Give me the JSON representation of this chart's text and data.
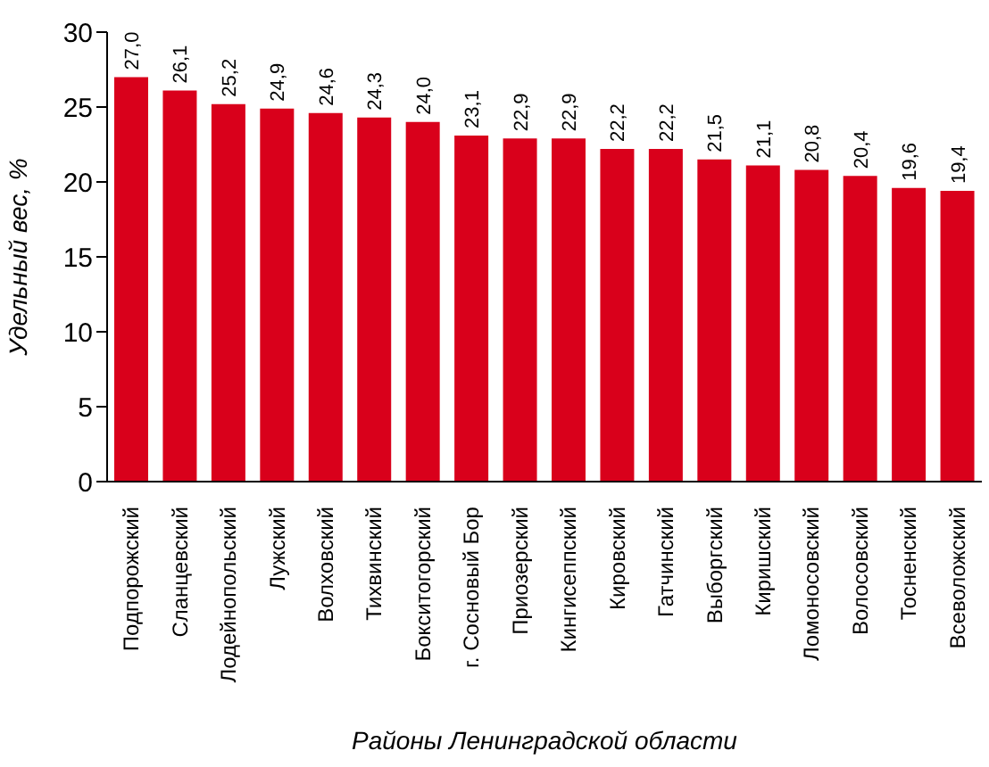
{
  "chart_data": {
    "type": "bar",
    "xlabel": "Районы Ленинградской области",
    "ylabel": "Удельный вес, %",
    "categories": [
      "Подпорожский",
      "Сланцевский",
      "Лодейнопольский",
      "Лужский",
      "Волховский",
      "Тихвинский",
      "Бокситогорский",
      "г. Сосновый Бор",
      "Приозерский",
      "Кингисеппский",
      "Кировский",
      "Гатчинский",
      "Выборгский",
      "Киришский",
      "Ломоносовский",
      "Волосовский",
      "Тосненский",
      "Всеволожский"
    ],
    "values": [
      27.0,
      26.1,
      25.2,
      24.9,
      24.6,
      24.3,
      24.0,
      23.1,
      22.9,
      22.9,
      22.2,
      22.2,
      21.5,
      21.1,
      20.8,
      20.4,
      19.6,
      19.4
    ],
    "value_labels": [
      "27,0",
      "26,1",
      "25,2",
      "24,9",
      "24,6",
      "24,3",
      "24,0",
      "23,1",
      "22,9",
      "22,9",
      "22,2",
      "22,2",
      "21,5",
      "21,1",
      "20,8",
      "20,4",
      "19,6",
      "19,4"
    ],
    "color": "#d9001b",
    "ylim": [
      0,
      30
    ],
    "yticks": [
      0,
      5,
      10,
      15,
      20,
      25,
      30
    ],
    "grid": false
  }
}
